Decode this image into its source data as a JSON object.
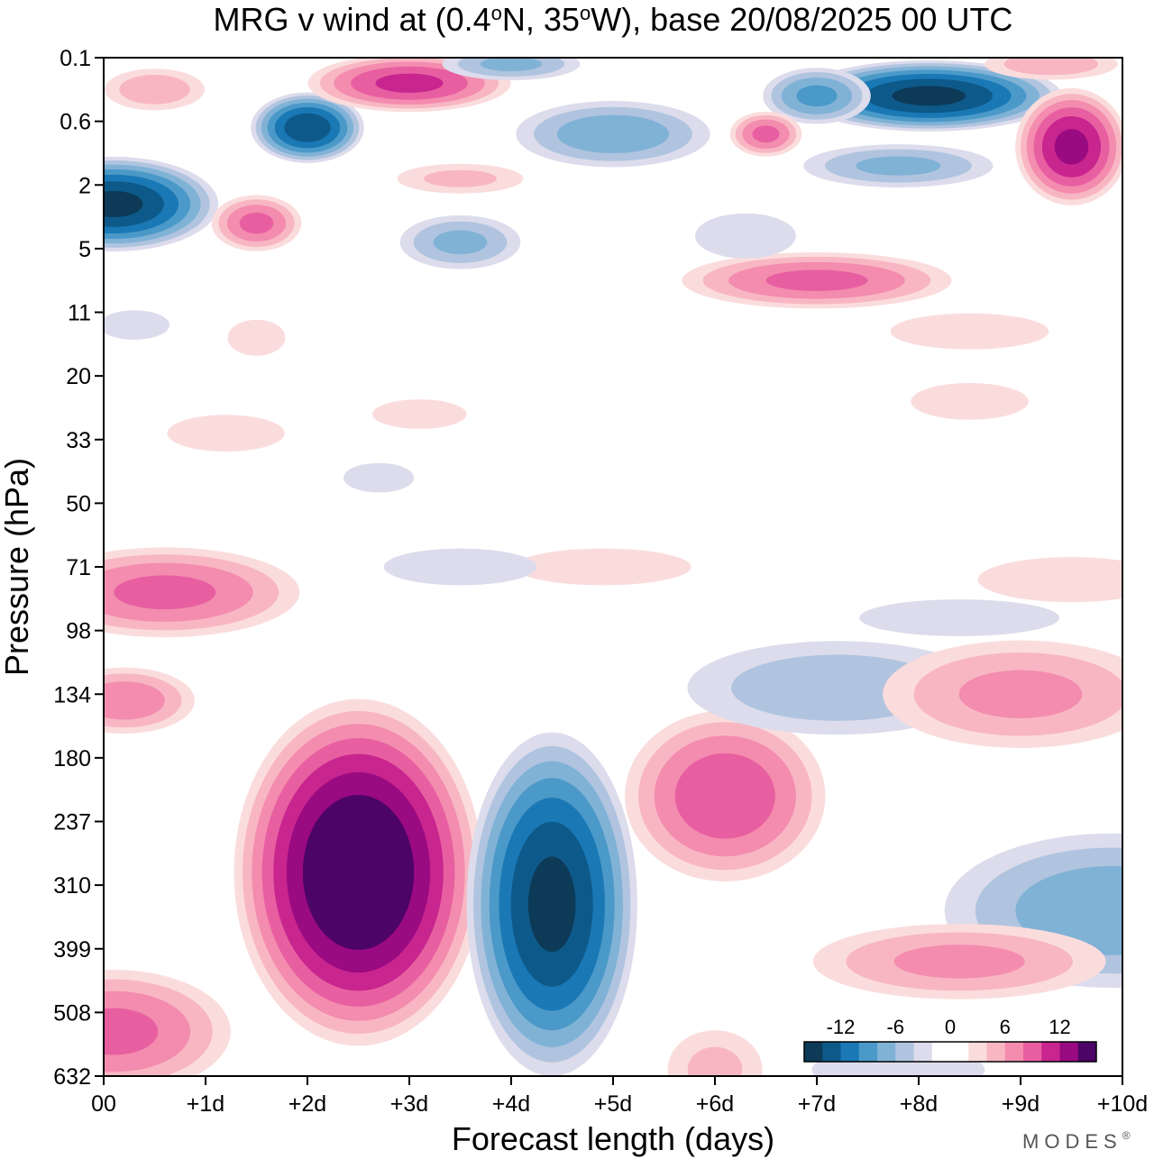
{
  "chart_data": {
    "type": "heatmap",
    "title": "MRG v wind at (0.4°N, 35°W),  base 20/08/2025  00 UTC",
    "title_parts": [
      "MRG v wind at (0.4",
      "o",
      "N, 35",
      "o",
      "W),  base 20/08/2025  00 UTC"
    ],
    "xlabel": "Forecast length (days)",
    "ylabel": "Pressure (hPa)",
    "x_range_days": [
      0,
      10
    ],
    "x_ticks": [
      {
        "value": 0,
        "label": "00"
      },
      {
        "value": 1,
        "label": "+1d"
      },
      {
        "value": 2,
        "label": "+2d"
      },
      {
        "value": 3,
        "label": "+3d"
      },
      {
        "value": 4,
        "label": "+4d"
      },
      {
        "value": 5,
        "label": "+5d"
      },
      {
        "value": 6,
        "label": "+6d"
      },
      {
        "value": 7,
        "label": "+7d"
      },
      {
        "value": 8,
        "label": "+8d"
      },
      {
        "value": 9,
        "label": "+9d"
      },
      {
        "value": 10,
        "label": "+10d"
      }
    ],
    "y_ticks": [
      "0.1",
      "0.6",
      "2",
      "5",
      "11",
      "20",
      "33",
      "50",
      "71",
      "98",
      "134",
      "180",
      "237",
      "310",
      "399",
      "508",
      "632"
    ],
    "colorbar": {
      "levels": [
        -16,
        -14,
        -12,
        -10,
        -8,
        -6,
        -4,
        -2,
        0,
        2,
        4,
        6,
        8,
        10,
        12,
        14,
        16
      ],
      "labels": [
        {
          "value": -12,
          "text": "-12"
        },
        {
          "value": -6,
          "text": "-6"
        },
        {
          "value": 0,
          "text": "0"
        },
        {
          "value": 6,
          "text": "6"
        },
        {
          "value": 12,
          "text": "12"
        }
      ],
      "colors": [
        "#0d3a57",
        "#0d5a8a",
        "#1a78b5",
        "#4a99c8",
        "#80b2d6",
        "#b0c4df",
        "#dcdcec",
        "#ffffff",
        "#ffffff",
        "#fbdcdc",
        "#f8b6c3",
        "#f38cae",
        "#e85fa1",
        "#c8258f",
        "#9a0a81",
        "#4d0467"
      ]
    },
    "features": [
      {
        "x": 2.5,
        "y": 12.8,
        "rx": 1.3,
        "ry": 2.9,
        "v": 17
      },
      {
        "x": 4.4,
        "y": 13.3,
        "rx": 0.9,
        "ry": 2.9,
        "v": -15
      },
      {
        "x": 6.1,
        "y": 11.6,
        "rx": 1.1,
        "ry": 1.5,
        "v": 10
      },
      {
        "x": 7.2,
        "y": 9.9,
        "rx": 1.8,
        "ry": 0.9,
        "v": -6
      },
      {
        "x": 9.0,
        "y": 10.0,
        "rx": 1.6,
        "ry": 1.0,
        "v": 7
      },
      {
        "x": 9.9,
        "y": 13.4,
        "rx": 1.9,
        "ry": 1.4,
        "v": -8
      },
      {
        "x": 8.4,
        "y": 14.2,
        "rx": 1.7,
        "ry": 0.7,
        "v": 7
      },
      {
        "x": 0.1,
        "y": 15.3,
        "rx": 1.3,
        "ry": 1.1,
        "v": 9
      },
      {
        "x": 0.2,
        "y": 10.1,
        "rx": 0.8,
        "ry": 0.6,
        "v": 8
      },
      {
        "x": 0.6,
        "y": 8.4,
        "rx": 1.5,
        "ry": 0.8,
        "v": 9
      },
      {
        "x": 6.0,
        "y": 15.9,
        "rx": 0.6,
        "ry": 0.8,
        "v": 5
      },
      {
        "x": 7.8,
        "y": 15.9,
        "rx": 1.2,
        "ry": 0.5,
        "v": -4
      },
      {
        "x": 4.9,
        "y": 8.0,
        "rx": 1.5,
        "ry": 0.5,
        "v": 3
      },
      {
        "x": 3.5,
        "y": 8.0,
        "rx": 1.3,
        "ry": 0.5,
        "v": -3
      },
      {
        "x": 8.4,
        "y": 8.8,
        "rx": 1.7,
        "ry": 0.5,
        "v": -3
      },
      {
        "x": 9.5,
        "y": 8.2,
        "rx": 1.3,
        "ry": 0.5,
        "v": 4
      },
      {
        "x": 0.1,
        "y": 2.3,
        "rx": 1.1,
        "ry": 0.8,
        "v": -15
      },
      {
        "x": 2.0,
        "y": 1.1,
        "rx": 0.6,
        "ry": 0.6,
        "v": -14
      },
      {
        "x": 1.5,
        "y": 2.6,
        "rx": 0.5,
        "ry": 0.5,
        "v": 9
      },
      {
        "x": 3.0,
        "y": 0.4,
        "rx": 1.1,
        "ry": 0.5,
        "v": 11
      },
      {
        "x": 4.0,
        "y": 0.1,
        "rx": 0.8,
        "ry": 0.3,
        "v": -7
      },
      {
        "x": 3.5,
        "y": 2.9,
        "rx": 0.7,
        "ry": 0.5,
        "v": -7
      },
      {
        "x": 5.0,
        "y": 1.2,
        "rx": 1.1,
        "ry": 0.6,
        "v": -8
      },
      {
        "x": 0.5,
        "y": 0.5,
        "rx": 0.6,
        "ry": 0.4,
        "v": 6
      },
      {
        "x": 8.1,
        "y": 0.6,
        "rx": 1.4,
        "ry": 0.6,
        "v": -15
      },
      {
        "x": 9.5,
        "y": 1.4,
        "rx": 0.6,
        "ry": 1.0,
        "v": 13
      },
      {
        "x": 7.0,
        "y": 0.6,
        "rx": 0.6,
        "ry": 0.5,
        "v": -9
      },
      {
        "x": 6.5,
        "y": 1.2,
        "rx": 0.4,
        "ry": 0.4,
        "v": 9
      },
      {
        "x": 7.8,
        "y": 1.7,
        "rx": 1.1,
        "ry": 0.4,
        "v": -7
      },
      {
        "x": 7.0,
        "y": 3.5,
        "rx": 1.5,
        "ry": 0.5,
        "v": 9
      },
      {
        "x": 6.3,
        "y": 2.8,
        "rx": 0.7,
        "ry": 0.5,
        "v": -4
      },
      {
        "x": 9.3,
        "y": 0.1,
        "rx": 0.8,
        "ry": 0.3,
        "v": 6
      },
      {
        "x": 3.5,
        "y": 1.9,
        "rx": 0.8,
        "ry": 0.3,
        "v": 5
      },
      {
        "x": 1.5,
        "y": 4.4,
        "rx": 0.4,
        "ry": 0.4,
        "v": 4
      },
      {
        "x": 8.5,
        "y": 4.3,
        "rx": 1.1,
        "ry": 0.4,
        "v": 4
      },
      {
        "x": 8.5,
        "y": 5.4,
        "rx": 1.0,
        "ry": 0.5,
        "v": 3
      },
      {
        "x": 3.1,
        "y": 5.6,
        "rx": 0.8,
        "ry": 0.4,
        "v": 3
      },
      {
        "x": 1.2,
        "y": 5.9,
        "rx": 1.0,
        "ry": 0.5,
        "v": 3
      },
      {
        "x": 2.7,
        "y": 6.6,
        "rx": 0.6,
        "ry": 0.4,
        "v": -3
      },
      {
        "x": 0.3,
        "y": 4.2,
        "rx": 0.6,
        "ry": 0.4,
        "v": -3
      }
    ]
  },
  "brand": "MODES",
  "brand_mark": "®"
}
